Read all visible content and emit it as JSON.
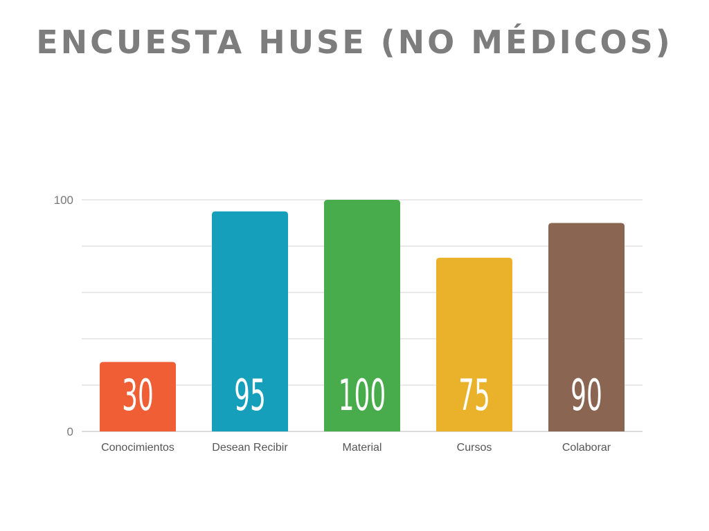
{
  "title": "ENCUESTA HUSE (NO MÉDICOS)",
  "chart_data": {
    "type": "bar",
    "categories": [
      "Conocimientos",
      "Desean Recibir",
      "Material",
      "Cursos",
      "Colaborar"
    ],
    "values": [
      30,
      95,
      100,
      75,
      90
    ],
    "value_labels": [
      "30",
      "95",
      "100",
      "75",
      "90"
    ],
    "colors": [
      "#EF5E35",
      "#169FBA",
      "#48AC4C",
      "#EAB12A",
      "#8A6552"
    ],
    "ylim": [
      0,
      100
    ],
    "yticks": [
      0,
      20,
      40,
      60,
      80,
      100
    ],
    "ytick_labels": [
      "0",
      "100"
    ],
    "grid": true,
    "legend": "none",
    "xlabel": "",
    "ylabel": ""
  }
}
